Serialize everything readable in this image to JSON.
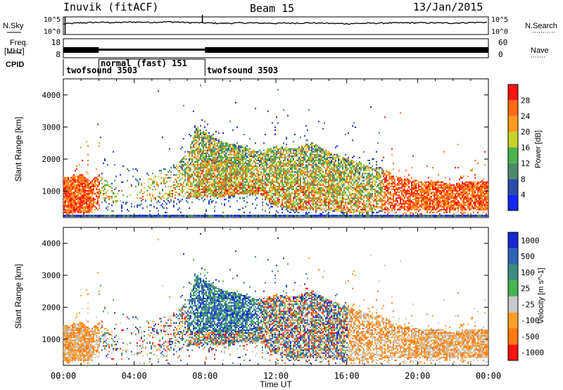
{
  "header": {
    "title": "Inuvik (fitACF)",
    "beam": "Beam 15",
    "date": "13/Jan/2015"
  },
  "noise_panel": {
    "left_label": "N.Sky",
    "right_label": "N.Search",
    "y_ticks": [
      "10^5",
      "10^0"
    ]
  },
  "freq_panel": {
    "left_label": "Freq.",
    "left_unit": "[MHz]",
    "left_ticks": [
      "18",
      "8"
    ],
    "right_label": "Nave",
    "right_ticks": [
      "60",
      "0"
    ]
  },
  "cpid_panel": {
    "label": "CPID",
    "programs": [
      {
        "name": "twofsound 3503",
        "start_hour": 0,
        "end_hour": 2
      },
      {
        "name": "normal (fast) 151",
        "start_hour": 2,
        "end_hour": 8
      },
      {
        "name": "twofsound 3503",
        "start_hour": 8,
        "end_hour": 24
      }
    ]
  },
  "power_colorbar": {
    "label": "Power [dB]",
    "ticks": [
      "4",
      "8",
      "12",
      "16",
      "20",
      "24",
      "28"
    ],
    "colors": [
      "#1428ff",
      "#2a4ba8",
      "#4a8a6a",
      "#4cb44c",
      "#c8d22a",
      "#ff9a1e",
      "#ff6a14",
      "#ff1414"
    ]
  },
  "velocity_colorbar": {
    "label": "Velocity [m s^-1]",
    "ticks": [
      "1000",
      "500",
      "100",
      "25",
      "-25",
      "-100",
      "-500",
      "-1000"
    ],
    "colors": [
      "#1428d2",
      "#2e64b4",
      "#3c8c82",
      "#46b450",
      "#c8c8c8",
      "#ffa028",
      "#ff7814",
      "#ff1414"
    ]
  },
  "chart_data": [
    {
      "type": "line",
      "panel": "noise",
      "series": [
        {
          "name": "N.Sky",
          "x": [
            0,
            1,
            2,
            3,
            4,
            5,
            6,
            7,
            8,
            9,
            10,
            11,
            12,
            13,
            14,
            15,
            16,
            17,
            18,
            19,
            20,
            21,
            22,
            23,
            24
          ],
          "values": [
            1000,
            2000,
            3000,
            2500,
            3500,
            3000,
            4000,
            2500,
            2000,
            1500,
            2000,
            1800,
            1500,
            1800,
            2000,
            1500,
            1200,
            1500,
            1800,
            2000,
            2200,
            2000,
            1800,
            2500,
            3000
          ]
        }
      ],
      "xlim": [
        0,
        24
      ]
    },
    {
      "type": "heatmap",
      "panel": "power",
      "xlabel": "Time UT",
      "ylabel": "Slant Range [km]",
      "xlim": [
        0,
        24
      ],
      "ylim": [
        180,
        4500
      ],
      "y_ticks": [
        1000,
        2000,
        3000,
        4000
      ],
      "clim": [
        0,
        30
      ]
    },
    {
      "type": "heatmap",
      "panel": "velocity",
      "xlabel": "Time UT",
      "ylabel": "Slant Range [km]",
      "xlim": [
        0,
        24
      ],
      "ylim": [
        180,
        4500
      ],
      "x_ticks": [
        "00:00",
        "04:00",
        "08:00",
        "12:00",
        "16:00",
        "20:00",
        "00:00"
      ],
      "y_ticks": [
        1000,
        2000,
        3000,
        4000
      ],
      "clim": [
        -1000,
        1000
      ]
    }
  ]
}
